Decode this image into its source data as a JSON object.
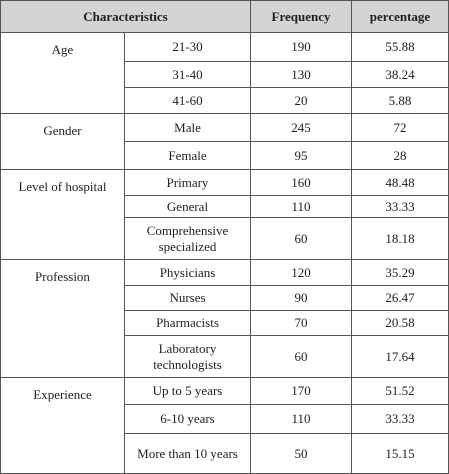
{
  "table": {
    "headers": [
      "Characteristics",
      "Frequency",
      "percentage"
    ],
    "groups": [
      {
        "category": "Age",
        "rows": [
          {
            "label": "21-30",
            "frequency": "190",
            "percentage": "55.88"
          },
          {
            "label": "31-40",
            "frequency": "130",
            "percentage": "38.24"
          },
          {
            "label": "41-60",
            "frequency": "20",
            "percentage": "5.88"
          }
        ]
      },
      {
        "category": "Gender",
        "rows": [
          {
            "label": "Male",
            "frequency": "245",
            "percentage": "72"
          },
          {
            "label": "Female",
            "frequency": "95",
            "percentage": "28"
          }
        ]
      },
      {
        "category": "Level of hospital",
        "rows": [
          {
            "label": "Primary",
            "frequency": "160",
            "percentage": "48.48"
          },
          {
            "label": "General",
            "frequency": "110",
            "percentage": "33.33"
          },
          {
            "label": "Comprehensive specialized",
            "frequency": "60",
            "percentage": "18.18"
          }
        ]
      },
      {
        "category": "Profession",
        "rows": [
          {
            "label": "Physicians",
            "frequency": "120",
            "percentage": "35.29"
          },
          {
            "label": "Nurses",
            "frequency": "90",
            "percentage": "26.47"
          },
          {
            "label": "Pharmacists",
            "frequency": "70",
            "percentage": "20.58"
          },
          {
            "label": "Laboratory technologists",
            "frequency": "60",
            "percentage": "17.64"
          }
        ]
      },
      {
        "category": "Experience",
        "rows": [
          {
            "label": "Up to 5 years",
            "frequency": "170",
            "percentage": "51.52"
          },
          {
            "label": "6-10 years",
            "frequency": "110",
            "percentage": "33.33"
          },
          {
            "label": "More than 10 years",
            "frequency": "50",
            "percentage": "15.15"
          }
        ]
      }
    ]
  }
}
